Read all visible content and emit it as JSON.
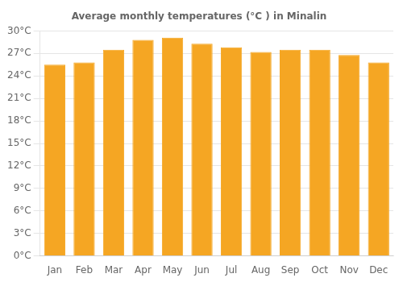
{
  "chart_data": {
    "type": "bar",
    "title": "Average monthly temperatures (°C ) in Minalin",
    "categories": [
      "Jan",
      "Feb",
      "Mar",
      "Apr",
      "May",
      "Jun",
      "Jul",
      "Aug",
      "Sep",
      "Oct",
      "Nov",
      "Dec"
    ],
    "values": [
      25.5,
      25.8,
      27.5,
      28.8,
      29.1,
      28.3,
      27.8,
      27.2,
      27.5,
      27.5,
      26.8,
      25.8
    ],
    "color": "#F5A623",
    "ylim": [
      0,
      30
    ],
    "yticks": [
      {
        "value": 0,
        "label": "0°C"
      },
      {
        "value": 3,
        "label": "3°C"
      },
      {
        "value": 6,
        "label": "6°C"
      },
      {
        "value": 9,
        "label": "9°C"
      },
      {
        "value": 12,
        "label": "12°C"
      },
      {
        "value": 15,
        "label": "15°C"
      },
      {
        "value": 18,
        "label": "18°C"
      },
      {
        "value": 21,
        "label": "21°C"
      },
      {
        "value": 24,
        "label": "24°C"
      },
      {
        "value": 27,
        "label": "27°C"
      },
      {
        "value": 30,
        "label": "30°C"
      }
    ],
    "grid": true
  }
}
